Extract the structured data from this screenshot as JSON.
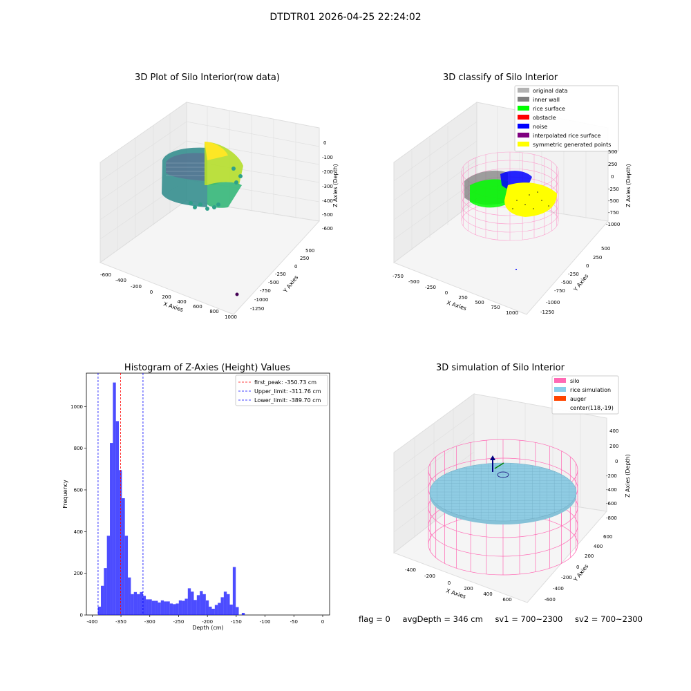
{
  "figure": {
    "suptitle": "DTDTR01 2026-04-25 22:24:02",
    "status": {
      "flag": "flag = 0",
      "avg_depth": "avgDepth = 346 cm",
      "sv1": "sv1 = 700~2300",
      "sv2": "sv2 = 700~2300"
    }
  },
  "panels": {
    "raw": {
      "title": "3D Plot of Silo Interior(row data)",
      "xlabel": "X Axies",
      "ylabel": "Y Axies",
      "zlabel": "Z Axies (Depth)",
      "xticks": [
        "-600",
        "-400",
        "-200",
        "0",
        "200",
        "400",
        "600",
        "800",
        "1000"
      ],
      "yticks": [
        "500",
        "250",
        "0",
        "-250",
        "-500",
        "-750",
        "-1000",
        "-1250"
      ],
      "zticks": [
        "0",
        "-100",
        "-200",
        "-300",
        "-400",
        "-500",
        "-600"
      ],
      "colormap": [
        "#fde725",
        "#b5de2b",
        "#6ece58",
        "#35b779",
        "#1f9e89",
        "#26828e",
        "#31688e",
        "#3e4989",
        "#482878",
        "#440154"
      ]
    },
    "classify": {
      "title": "3D classify of Silo Interior",
      "xlabel": "X Axies",
      "ylabel": "Y Axies",
      "zlabel": "Z Axies (Depth)",
      "xticks": [
        "-750",
        "-500",
        "-250",
        "0",
        "250",
        "500",
        "750",
        "1000"
      ],
      "yticks": [
        "500",
        "250",
        "0",
        "-250",
        "-500",
        "-750",
        "-1000",
        "-1250"
      ],
      "zticks": [
        "500",
        "250",
        "0",
        "-250",
        "-500",
        "-750",
        "-1000"
      ],
      "legend": [
        {
          "label": "original data",
          "color": "#b3b3b3"
        },
        {
          "label": "inner wall",
          "color": "#808080"
        },
        {
          "label": "rice surface",
          "color": "#00ff00"
        },
        {
          "label": "obstacle",
          "color": "#ff0000"
        },
        {
          "label": "noise",
          "color": "#0000ff"
        },
        {
          "label": "interpolated rice surface",
          "color": "#800080"
        },
        {
          "label": "symmetric generated points",
          "color": "#ffff00"
        }
      ],
      "silo_color": "#ff69b4"
    },
    "simulation": {
      "title": "3D simulation of Silo Interior",
      "xlabel": "X Axies",
      "ylabel": "Y Axies",
      "zlabel": "Z Axies (Depth)",
      "xticks": [
        "-400",
        "-200",
        "0",
        "200",
        "400",
        "600"
      ],
      "yticks": [
        "600",
        "400",
        "200",
        "0",
        "-200",
        "-400",
        "-600"
      ],
      "zticks": [
        "400",
        "200",
        "0",
        "-200",
        "-400",
        "-600",
        "-800"
      ],
      "legend": [
        {
          "label": "silo",
          "color": "#ff69b4",
          "kind": "patch"
        },
        {
          "label": "rice simulation",
          "color": "#87ceeb",
          "kind": "patch"
        },
        {
          "label": "auger",
          "color": "#ff4500",
          "kind": "patch"
        },
        {
          "label": "center(118,-19)",
          "color": "",
          "kind": "none"
        }
      ]
    }
  },
  "chart_data": {
    "type": "bar",
    "title": "Histogram of Z-Axies (Height) Values",
    "xlabel": "Depth (cm)",
    "ylabel": "Frequency",
    "xlim": [
      -410,
      12
    ],
    "ylim": [
      0,
      1160
    ],
    "xticks": [
      -400,
      -350,
      -300,
      -250,
      -200,
      -150,
      -100,
      -50,
      0
    ],
    "yticks": [
      0,
      200,
      400,
      600,
      800,
      1000
    ],
    "bin_width": 5.2,
    "bar_color": "#0000ff",
    "bins": [
      {
        "x0": -390.0,
        "count": 40
      },
      {
        "x0": -384.8,
        "count": 140
      },
      {
        "x0": -379.6,
        "count": 225
      },
      {
        "x0": -374.4,
        "count": 380
      },
      {
        "x0": -369.2,
        "count": 825
      },
      {
        "x0": -364.0,
        "count": 1115
      },
      {
        "x0": -358.8,
        "count": 930
      },
      {
        "x0": -353.6,
        "count": 695
      },
      {
        "x0": -348.4,
        "count": 560
      },
      {
        "x0": -343.2,
        "count": 380
      },
      {
        "x0": -338.0,
        "count": 180
      },
      {
        "x0": -332.8,
        "count": 100
      },
      {
        "x0": -327.6,
        "count": 110
      },
      {
        "x0": -322.4,
        "count": 100
      },
      {
        "x0": -317.2,
        "count": 110
      },
      {
        "x0": -312.0,
        "count": 92
      },
      {
        "x0": -306.8,
        "count": 75
      },
      {
        "x0": -301.6,
        "count": 75
      },
      {
        "x0": -296.4,
        "count": 68
      },
      {
        "x0": -291.2,
        "count": 68
      },
      {
        "x0": -286.0,
        "count": 60
      },
      {
        "x0": -280.8,
        "count": 70
      },
      {
        "x0": -275.6,
        "count": 65
      },
      {
        "x0": -270.4,
        "count": 65
      },
      {
        "x0": -265.2,
        "count": 55
      },
      {
        "x0": -260.0,
        "count": 52
      },
      {
        "x0": -254.8,
        "count": 55
      },
      {
        "x0": -249.6,
        "count": 70
      },
      {
        "x0": -244.4,
        "count": 68
      },
      {
        "x0": -239.2,
        "count": 78
      },
      {
        "x0": -234.0,
        "count": 128
      },
      {
        "x0": -228.8,
        "count": 112
      },
      {
        "x0": -223.6,
        "count": 72
      },
      {
        "x0": -218.4,
        "count": 95
      },
      {
        "x0": -213.2,
        "count": 115
      },
      {
        "x0": -208.0,
        "count": 100
      },
      {
        "x0": -202.8,
        "count": 70
      },
      {
        "x0": -197.6,
        "count": 40
      },
      {
        "x0": -192.4,
        "count": 30
      },
      {
        "x0": -187.2,
        "count": 48
      },
      {
        "x0": -182.0,
        "count": 58
      },
      {
        "x0": -176.8,
        "count": 85
      },
      {
        "x0": -171.6,
        "count": 112
      },
      {
        "x0": -166.4,
        "count": 100
      },
      {
        "x0": -161.2,
        "count": 50
      },
      {
        "x0": -156.0,
        "count": 230
      },
      {
        "x0": -150.8,
        "count": 38
      },
      {
        "x0": -145.6,
        "count": 0
      },
      {
        "x0": -140.4,
        "count": 10
      }
    ],
    "vlines": [
      {
        "label": "first_peak: -350.73 cm",
        "x": -350.73,
        "color": "#ff0000"
      },
      {
        "label": "Upper_limit: -311.76 cm",
        "x": -311.76,
        "color": "#0000ff"
      },
      {
        "label": "Lower_limit: -389.70 cm",
        "x": -389.7,
        "color": "#0000ff"
      }
    ],
    "legend_position": "top-right"
  }
}
